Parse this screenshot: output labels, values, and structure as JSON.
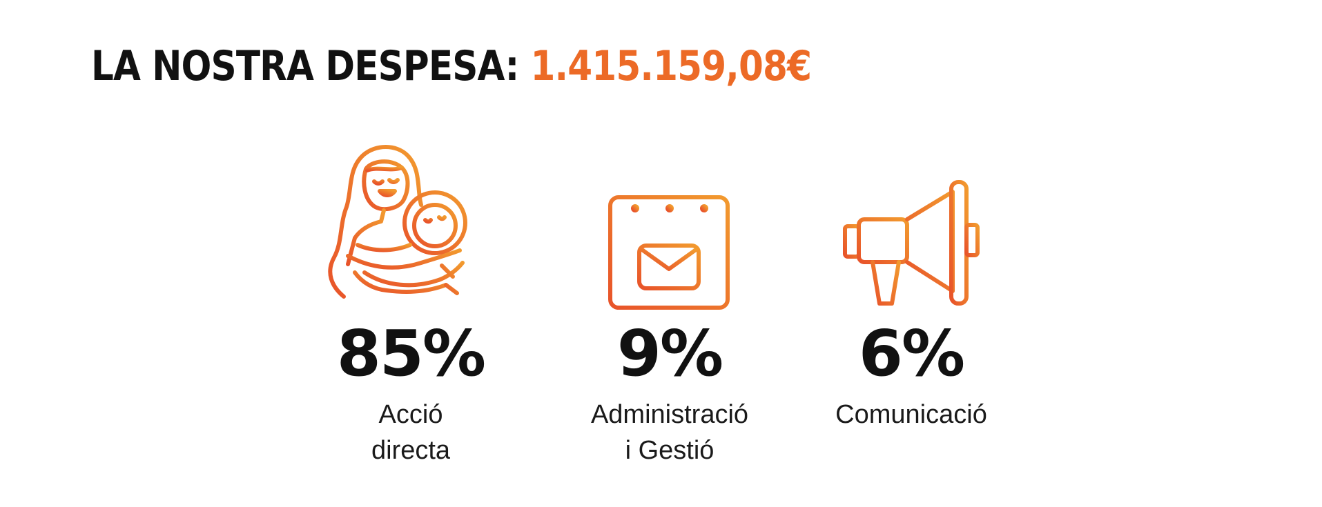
{
  "heading": {
    "label": "LA NOSTRA DESPESA:",
    "amount": "1.415.159,08€"
  },
  "colors": {
    "accent_start": "#e8532a",
    "accent_end": "#f29a2e",
    "text": "#111111"
  },
  "chart_data": {
    "type": "bar",
    "categories": [
      "Acció directa",
      "Administració i Gestió",
      "Comunicació"
    ],
    "values": [
      85,
      9,
      6
    ],
    "unit": "%",
    "items": [
      {
        "icon": "mother-and-baby-icon",
        "value_label": "85%",
        "category": "Acció\ndirecta"
      },
      {
        "icon": "calendar-envelope-icon",
        "value_label": "9%",
        "category": "Administració\ni Gestió"
      },
      {
        "icon": "megaphone-icon",
        "value_label": "6%",
        "category": "Comunicació"
      }
    ]
  }
}
